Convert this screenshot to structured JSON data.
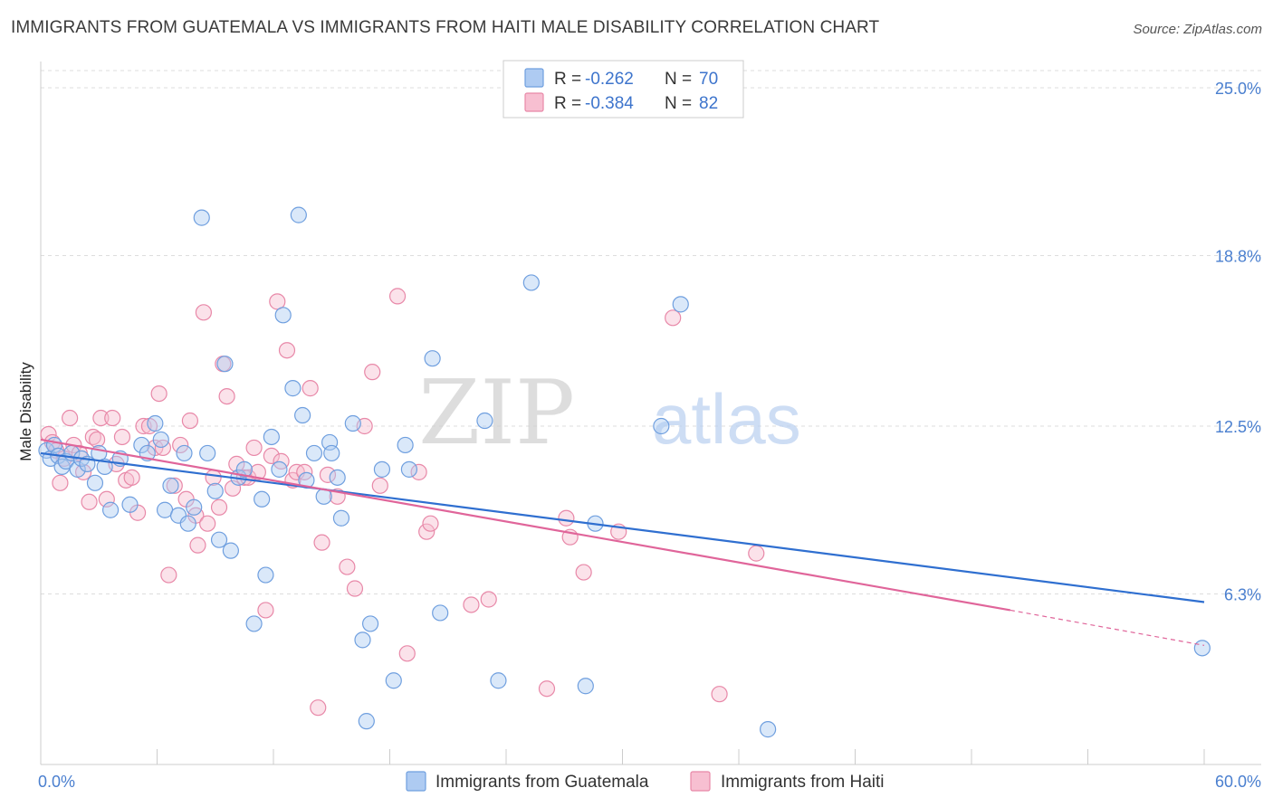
{
  "title": "IMMIGRANTS FROM GUATEMALA VS IMMIGRANTS FROM HAITI MALE DISABILITY CORRELATION CHART",
  "source": "Source: ZipAtlas.com",
  "watermark": {
    "zip": "ZIP",
    "atlas": "atlas"
  },
  "colors": {
    "guatemala_fill": "#aecbf2",
    "guatemala_stroke": "#6f9fdf",
    "guatemala_line": "#2f6fd0",
    "haiti_fill": "#f7bfd1",
    "haiti_stroke": "#e888a8",
    "haiti_line": "#e0659a",
    "grid": "#dddddd",
    "tick_text": "#4a7fcf"
  },
  "legend": {
    "rows": [
      {
        "r_label": "R =",
        "r_value": "-0.262",
        "n_label": "N =",
        "n_value": "70"
      },
      {
        "r_label": "R =",
        "r_value": "-0.384",
        "n_label": "N =",
        "n_value": "82"
      }
    ]
  },
  "chart_data": {
    "type": "scatter",
    "title": "IMMIGRANTS FROM GUATEMALA VS IMMIGRANTS FROM HAITI MALE DISABILITY CORRELATION CHART",
    "xlabel": "",
    "ylabel": "Male Disability",
    "xlim": [
      0,
      60
    ],
    "ylim": [
      0,
      25.8
    ],
    "x_tick_labels": [
      "0.0%",
      "60.0%"
    ],
    "y_ticks": [
      6.3,
      12.5,
      18.8,
      25.0
    ],
    "y_tick_labels": [
      "6.3%",
      "12.5%",
      "18.8%",
      "25.0%"
    ],
    "grid": true,
    "legend_position": "top-center",
    "series": [
      {
        "name": "Immigrants from Guatemala",
        "r": -0.262,
        "n": 70,
        "trend": {
          "x0": 0,
          "y0": 11.5,
          "x1": 60,
          "y1": 6.0
        },
        "points": [
          [
            0.3,
            11.6
          ],
          [
            0.5,
            11.3
          ],
          [
            0.7,
            11.8
          ],
          [
            0.9,
            11.4
          ],
          [
            1.1,
            11.0
          ],
          [
            1.3,
            11.2
          ],
          [
            1.6,
            11.5
          ],
          [
            1.9,
            10.9
          ],
          [
            2.1,
            11.3
          ],
          [
            2.4,
            11.1
          ],
          [
            2.8,
            10.4
          ],
          [
            3.0,
            11.5
          ],
          [
            3.3,
            11.0
          ],
          [
            3.6,
            9.4
          ],
          [
            4.1,
            11.3
          ],
          [
            4.6,
            9.6
          ],
          [
            5.2,
            11.8
          ],
          [
            5.5,
            11.5
          ],
          [
            5.9,
            12.6
          ],
          [
            6.2,
            12.0
          ],
          [
            6.4,
            9.4
          ],
          [
            6.7,
            10.3
          ],
          [
            7.1,
            9.2
          ],
          [
            7.4,
            11.5
          ],
          [
            7.6,
            8.9
          ],
          [
            7.9,
            9.5
          ],
          [
            8.3,
            20.2
          ],
          [
            8.6,
            11.5
          ],
          [
            9.0,
            10.1
          ],
          [
            9.2,
            8.3
          ],
          [
            9.5,
            14.8
          ],
          [
            9.8,
            7.9
          ],
          [
            10.2,
            10.6
          ],
          [
            10.5,
            10.9
          ],
          [
            11.0,
            5.2
          ],
          [
            11.4,
            9.8
          ],
          [
            11.6,
            7.0
          ],
          [
            11.9,
            12.1
          ],
          [
            12.3,
            10.9
          ],
          [
            12.5,
            16.6
          ],
          [
            13.0,
            13.9
          ],
          [
            13.3,
            20.3
          ],
          [
            13.5,
            12.9
          ],
          [
            13.7,
            10.5
          ],
          [
            14.1,
            11.5
          ],
          [
            14.6,
            9.9
          ],
          [
            14.9,
            11.9
          ],
          [
            15.0,
            11.5
          ],
          [
            15.3,
            10.6
          ],
          [
            15.5,
            9.1
          ],
          [
            16.1,
            12.6
          ],
          [
            16.6,
            4.6
          ],
          [
            16.8,
            1.6
          ],
          [
            17.0,
            5.2
          ],
          [
            17.6,
            10.9
          ],
          [
            18.2,
            3.1
          ],
          [
            18.8,
            11.8
          ],
          [
            19.0,
            10.9
          ],
          [
            20.2,
            15.0
          ],
          [
            20.6,
            5.6
          ],
          [
            22.9,
            12.7
          ],
          [
            23.6,
            3.1
          ],
          [
            25.3,
            17.8
          ],
          [
            28.1,
            2.9
          ],
          [
            28.6,
            8.9
          ],
          [
            32.0,
            12.5
          ],
          [
            33.0,
            17.0
          ],
          [
            37.5,
            1.3
          ],
          [
            59.9,
            4.3
          ]
        ]
      },
      {
        "name": "Immigrants from Haiti",
        "r": -0.384,
        "n": 82,
        "trend": {
          "x0": 0,
          "y0": 12.0,
          "x1": 50,
          "y1": 5.7,
          "dash_x1": 60,
          "dash_y1": 4.4
        },
        "points": [
          [
            0.4,
            12.2
          ],
          [
            0.6,
            11.9
          ],
          [
            0.8,
            11.6
          ],
          [
            1.0,
            10.4
          ],
          [
            1.2,
            11.3
          ],
          [
            1.5,
            12.8
          ],
          [
            1.7,
            11.8
          ],
          [
            2.0,
            11.5
          ],
          [
            2.2,
            10.8
          ],
          [
            2.5,
            9.7
          ],
          [
            2.7,
            12.1
          ],
          [
            2.9,
            12.0
          ],
          [
            3.1,
            12.8
          ],
          [
            3.4,
            9.8
          ],
          [
            3.7,
            12.8
          ],
          [
            3.9,
            11.1
          ],
          [
            4.2,
            12.1
          ],
          [
            4.4,
            10.5
          ],
          [
            4.7,
            10.6
          ],
          [
            5.0,
            9.3
          ],
          [
            5.3,
            12.5
          ],
          [
            5.6,
            12.5
          ],
          [
            5.9,
            11.7
          ],
          [
            6.1,
            13.7
          ],
          [
            6.3,
            11.7
          ],
          [
            6.6,
            7.0
          ],
          [
            6.9,
            10.3
          ],
          [
            7.2,
            11.8
          ],
          [
            7.5,
            9.8
          ],
          [
            7.7,
            12.7
          ],
          [
            8.0,
            9.2
          ],
          [
            8.1,
            8.1
          ],
          [
            8.4,
            16.7
          ],
          [
            8.6,
            8.9
          ],
          [
            8.9,
            10.6
          ],
          [
            9.2,
            9.5
          ],
          [
            9.4,
            14.8
          ],
          [
            9.6,
            13.6
          ],
          [
            9.9,
            10.2
          ],
          [
            10.1,
            11.1
          ],
          [
            10.5,
            10.6
          ],
          [
            10.7,
            10.6
          ],
          [
            11.0,
            11.7
          ],
          [
            11.2,
            10.8
          ],
          [
            11.6,
            5.7
          ],
          [
            11.9,
            11.4
          ],
          [
            12.2,
            17.1
          ],
          [
            12.4,
            11.2
          ],
          [
            12.7,
            15.3
          ],
          [
            13.0,
            10.5
          ],
          [
            13.2,
            10.8
          ],
          [
            13.6,
            10.8
          ],
          [
            13.9,
            13.9
          ],
          [
            14.3,
            2.1
          ],
          [
            14.5,
            8.2
          ],
          [
            14.8,
            10.7
          ],
          [
            15.3,
            9.9
          ],
          [
            15.8,
            7.3
          ],
          [
            16.2,
            6.5
          ],
          [
            16.7,
            12.5
          ],
          [
            17.1,
            14.5
          ],
          [
            17.5,
            10.3
          ],
          [
            18.4,
            17.3
          ],
          [
            18.9,
            4.1
          ],
          [
            19.5,
            10.8
          ],
          [
            19.9,
            8.6
          ],
          [
            20.1,
            8.9
          ],
          [
            22.2,
            5.9
          ],
          [
            23.1,
            6.1
          ],
          [
            26.1,
            2.8
          ],
          [
            27.1,
            9.1
          ],
          [
            27.3,
            8.4
          ],
          [
            28.0,
            7.1
          ],
          [
            29.8,
            8.6
          ],
          [
            32.6,
            16.5
          ],
          [
            35.0,
            2.6
          ],
          [
            36.9,
            7.8
          ]
        ]
      }
    ]
  }
}
